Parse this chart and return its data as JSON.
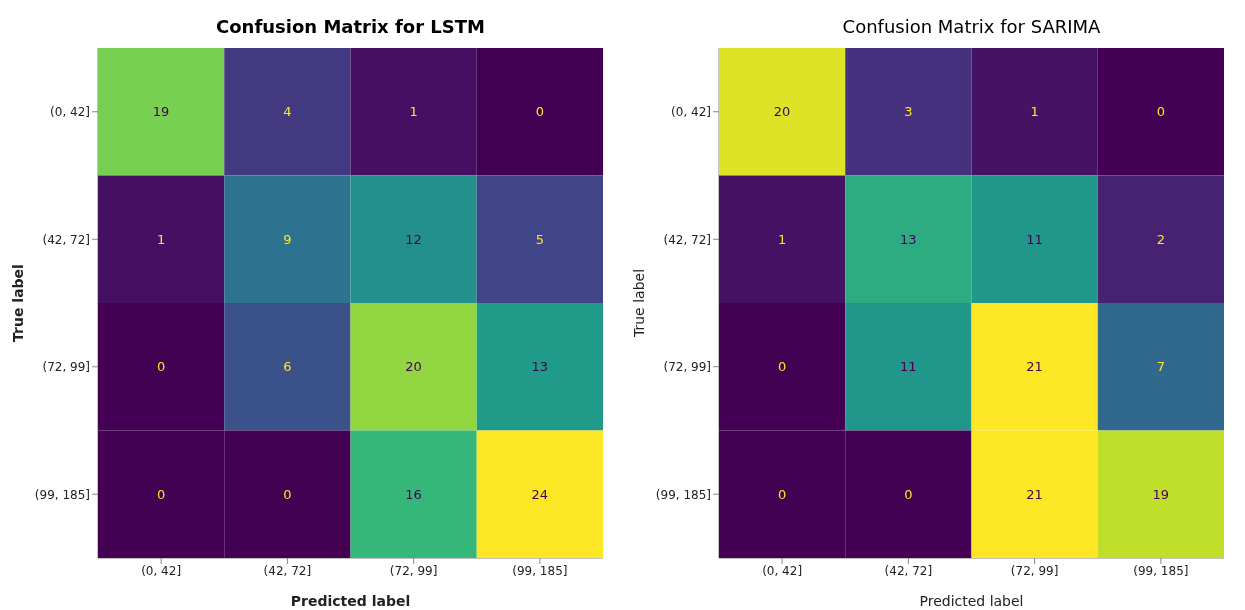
{
  "chart_data": [
    {
      "type": "heatmap",
      "title": "Confusion Matrix for LSTM",
      "xlabel": "Predicted label",
      "ylabel": "True label",
      "categories": [
        "(0, 42]",
        "(42, 72]",
        "(72, 99]",
        "(99, 185]"
      ],
      "y_categories": [
        "(0, 42]",
        "(42, 72]",
        "(72, 99]",
        "(99, 185]"
      ],
      "cells": [
        [
          19,
          4,
          1,
          0
        ],
        [
          1,
          9,
          12,
          5
        ],
        [
          0,
          6,
          20,
          13
        ],
        [
          0,
          0,
          16,
          24
        ]
      ],
      "data_labels": true
    },
    {
      "type": "heatmap",
      "title": "Confusion Matrix for SARIMA",
      "xlabel": "Predicted label",
      "ylabel": "True label",
      "categories": [
        "(0, 42]",
        "(42, 72]",
        "(72, 99]",
        "(99, 185]"
      ],
      "y_categories": [
        "(0, 42]",
        "(42, 72]",
        "(72, 99]",
        "(99, 185]"
      ],
      "cells": [
        [
          20,
          3,
          1,
          0
        ],
        [
          1,
          13,
          11,
          2
        ],
        [
          0,
          11,
          21,
          7
        ],
        [
          0,
          0,
          21,
          19
        ]
      ],
      "data_labels": true
    }
  ]
}
